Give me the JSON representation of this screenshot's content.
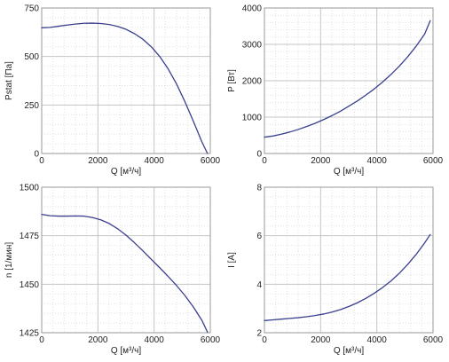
{
  "chart_data": [
    {
      "type": "line",
      "xlabel": "Q [м³/ч]",
      "ylabel": "Pstat [Па]",
      "xlim": [
        0,
        6000
      ],
      "ylim": [
        0,
        750
      ],
      "xticks": [
        0,
        2000,
        4000,
        6000
      ],
      "yticks": [
        0,
        250,
        500,
        750
      ],
      "grid": true,
      "line_color": "#3a3f8f",
      "series": [
        {
          "x": [
            0,
            300,
            600,
            900,
            1200,
            1500,
            1800,
            2100,
            2400,
            2700,
            3000,
            3300,
            3600,
            3900,
            4200,
            4500,
            4800,
            5100,
            5400,
            5700,
            5900
          ],
          "y": [
            648,
            650,
            656,
            662,
            667,
            671,
            672,
            670,
            665,
            655,
            640,
            618,
            589,
            550,
            500,
            436,
            358,
            266,
            165,
            60,
            0
          ]
        }
      ]
    },
    {
      "type": "line",
      "xlabel": "Q [м³/ч]",
      "ylabel": "P [Вт]",
      "xlim": [
        0,
        6000
      ],
      "ylim": [
        0,
        4000
      ],
      "xticks": [
        0,
        2000,
        4000,
        6000
      ],
      "yticks": [
        0,
        1000,
        2000,
        3000,
        4000
      ],
      "grid": true,
      "line_color": "#3a3f8f",
      "series": [
        {
          "x": [
            0,
            300,
            600,
            900,
            1200,
            1500,
            1800,
            2100,
            2400,
            2700,
            3000,
            3300,
            3600,
            3900,
            4200,
            4500,
            4800,
            5100,
            5400,
            5700,
            5900
          ],
          "y": [
            450,
            480,
            530,
            590,
            660,
            740,
            830,
            930,
            1040,
            1160,
            1300,
            1440,
            1600,
            1770,
            1960,
            2170,
            2400,
            2660,
            2950,
            3280,
            3650
          ]
        }
      ]
    },
    {
      "type": "line",
      "xlabel": "Q [м³/ч]",
      "ylabel": "n [1/мин]",
      "xlim": [
        0,
        6000
      ],
      "ylim": [
        1425,
        1500
      ],
      "xticks": [
        0,
        2000,
        4000,
        6000
      ],
      "yticks": [
        1425,
        1450,
        1475,
        1500
      ],
      "grid": true,
      "line_color": "#3a3f8f",
      "series": [
        {
          "x": [
            0,
            300,
            600,
            900,
            1200,
            1500,
            1800,
            2100,
            2400,
            2700,
            3000,
            3300,
            3600,
            3900,
            4200,
            4500,
            4800,
            5100,
            5400,
            5700,
            5900
          ],
          "y": [
            1486,
            1485.3,
            1485.1,
            1485.1,
            1485.2,
            1485.1,
            1484.4,
            1483.2,
            1481.3,
            1478.6,
            1475.3,
            1471.4,
            1467.2,
            1462.8,
            1458.5,
            1454.0,
            1449.3,
            1444.1,
            1438.2,
            1431.4,
            1425.3
          ]
        }
      ]
    },
    {
      "type": "line",
      "xlabel": "Q [м³/ч]",
      "ylabel": "I [A]",
      "xlim": [
        0,
        6000
      ],
      "ylim": [
        2,
        8
      ],
      "xticks": [
        0,
        2000,
        4000,
        6000
      ],
      "yticks": [
        2,
        4,
        6,
        8
      ],
      "grid": true,
      "line_color": "#3a3f8f",
      "series": [
        {
          "x": [
            0,
            300,
            600,
            900,
            1200,
            1500,
            1800,
            2100,
            2400,
            2700,
            3000,
            3300,
            3600,
            3900,
            4200,
            4500,
            4800,
            5100,
            5400,
            5700,
            5900
          ],
          "y": [
            2.5,
            2.53,
            2.56,
            2.59,
            2.62,
            2.66,
            2.71,
            2.77,
            2.85,
            2.95,
            3.08,
            3.23,
            3.41,
            3.62,
            3.86,
            4.13,
            4.45,
            4.82,
            5.23,
            5.7,
            6.05
          ]
        }
      ]
    }
  ]
}
